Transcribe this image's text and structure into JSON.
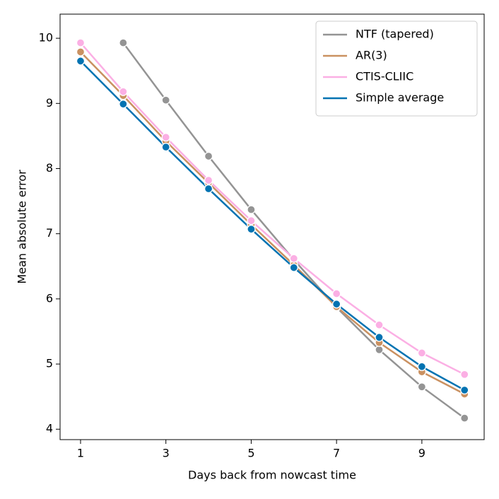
{
  "chart_data": {
    "type": "line",
    "xlabel": "Days back from nowcast time",
    "ylabel": "Mean absolute error",
    "x": [
      1,
      2,
      3,
      4,
      5,
      6,
      7,
      8,
      9,
      10
    ],
    "series": [
      {
        "name": "NTF (tapered)",
        "color": "#949494",
        "values": [
          null,
          9.93,
          9.05,
          8.19,
          7.37,
          6.6,
          5.87,
          5.22,
          4.65,
          4.17
        ]
      },
      {
        "name": "AR(3)",
        "color": "#ca9161",
        "values": [
          9.79,
          9.12,
          8.42,
          7.78,
          7.14,
          6.52,
          5.88,
          5.33,
          4.88,
          4.54
        ]
      },
      {
        "name": "CTIS-CLIIC",
        "color": "#fbafe4",
        "values": [
          9.93,
          9.18,
          8.48,
          7.82,
          7.2,
          6.62,
          6.08,
          5.6,
          5.17,
          4.84
        ]
      },
      {
        "name": "Simple average",
        "color": "#0173b2",
        "values": [
          9.65,
          8.99,
          8.33,
          7.69,
          7.07,
          6.48,
          5.92,
          5.41,
          4.96,
          4.6
        ]
      }
    ],
    "xlim": [
      0.52,
      10.46
    ],
    "ylim": [
      3.84,
      10.37
    ],
    "xticks": [
      1,
      3,
      5,
      7,
      9
    ],
    "yticks": [
      4,
      5,
      6,
      7,
      8,
      9,
      10
    ],
    "legend": "upper right"
  }
}
